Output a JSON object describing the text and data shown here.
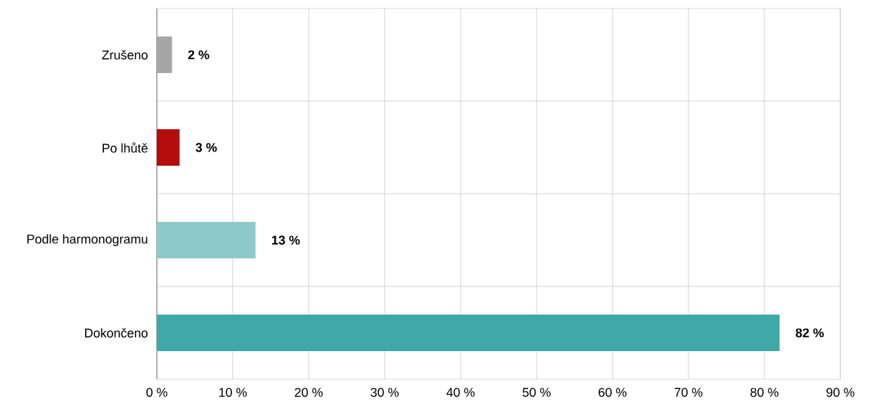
{
  "chart_data": {
    "type": "bar",
    "orientation": "horizontal",
    "categories": [
      "Zrušeno",
      "Po lhůtě",
      "Podle harmonogramu",
      "Dokončeno"
    ],
    "values": [
      2,
      3,
      13,
      82
    ],
    "colors": [
      "#a6a6a6",
      "#b50d0d",
      "#8ecac9",
      "#3fa9a7"
    ],
    "value_labels": [
      "2 %",
      "3 %",
      "13 %",
      "82 %"
    ],
    "xlim": [
      0,
      90
    ],
    "xticks": [
      {
        "value": 0,
        "label": "0 %"
      },
      {
        "value": 10,
        "label": "10 %"
      },
      {
        "value": 20,
        "label": "20 %"
      },
      {
        "value": 30,
        "label": "30 %"
      },
      {
        "value": 40,
        "label": "40 %"
      },
      {
        "value": 50,
        "label": "50 %"
      },
      {
        "value": 60,
        "label": "60 %"
      },
      {
        "value": 70,
        "label": "70 %"
      },
      {
        "value": 80,
        "label": "80 %"
      },
      {
        "value": 90,
        "label": "90 %"
      }
    ],
    "grid": true
  }
}
